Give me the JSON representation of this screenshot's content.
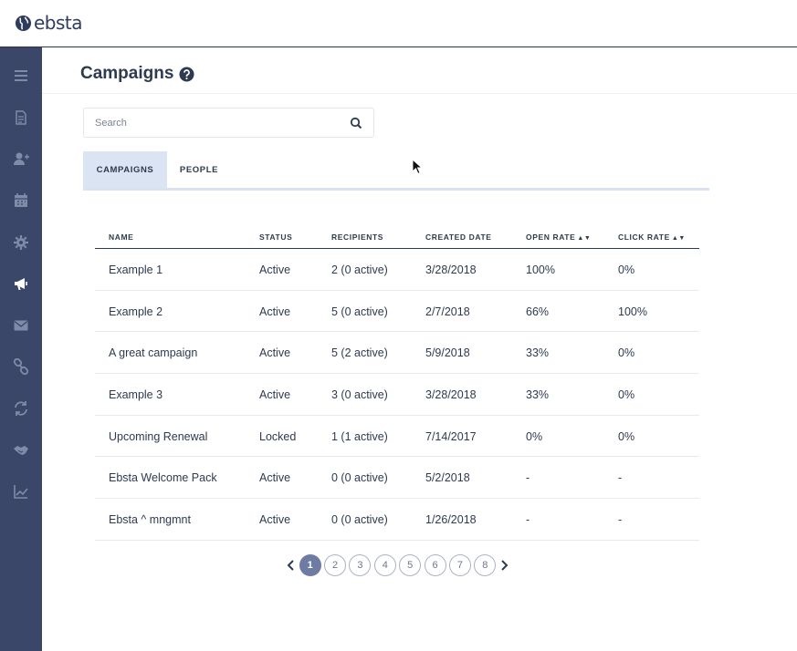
{
  "brand": {
    "logo_text": "ebsta"
  },
  "sidebar": {
    "items": [
      {
        "icon": "menu-icon",
        "active": false
      },
      {
        "icon": "document-icon",
        "active": false
      },
      {
        "icon": "add-user-icon",
        "active": false
      },
      {
        "icon": "calendar-icon",
        "active": false
      },
      {
        "icon": "gear-icon",
        "active": false
      },
      {
        "icon": "megaphone-icon",
        "active": true
      },
      {
        "icon": "envelope-icon",
        "active": false
      },
      {
        "icon": "link-icon",
        "active": false
      },
      {
        "icon": "sync-icon",
        "active": false
      },
      {
        "icon": "handshake-icon",
        "active": false
      },
      {
        "icon": "line-chart-icon",
        "active": false
      }
    ]
  },
  "header": {
    "title": "Campaigns"
  },
  "search": {
    "placeholder": "Search",
    "value": ""
  },
  "tabs": [
    {
      "label": "CAMPAIGNS",
      "active": true
    },
    {
      "label": "PEOPLE",
      "active": false
    }
  ],
  "table": {
    "columns": [
      "NAME",
      "STATUS",
      "RECIPIENTS",
      "CREATED DATE",
      "OPEN RATE",
      "CLICK RATE"
    ],
    "sortable": [
      false,
      false,
      false,
      false,
      true,
      true
    ],
    "rows": [
      [
        "Example 1",
        "Active",
        "2 (0 active)",
        "3/28/2018",
        "100%",
        "0%"
      ],
      [
        "Example 2",
        "Active",
        "5 (0 active)",
        "2/7/2018",
        "66%",
        "100%"
      ],
      [
        "A great campaign",
        "Active",
        "5 (2 active)",
        "5/9/2018",
        "33%",
        "0%"
      ],
      [
        "Example 3",
        "Active",
        "3 (0 active)",
        "3/28/2018",
        "33%",
        "0%"
      ],
      [
        "Upcoming Renewal",
        "Locked",
        "1 (1 active)",
        "7/14/2017",
        "0%",
        "0%"
      ],
      [
        "Ebsta Welcome Pack",
        "Active",
        "0 (0 active)",
        "5/2/2018",
        "-",
        "-"
      ],
      [
        "Ebsta ^ mngmnt",
        "Active",
        "0 (0 active)",
        "1/26/2018",
        "-",
        "-"
      ]
    ]
  },
  "pagination": {
    "pages": [
      "1",
      "2",
      "3",
      "4",
      "5",
      "6",
      "7",
      "8"
    ],
    "current": "1"
  },
  "colors": {
    "sidebar": "#3a4768",
    "accent": "#6e7ca3",
    "text": "#2e3a4f",
    "tab_active": "#dbe4f3"
  }
}
